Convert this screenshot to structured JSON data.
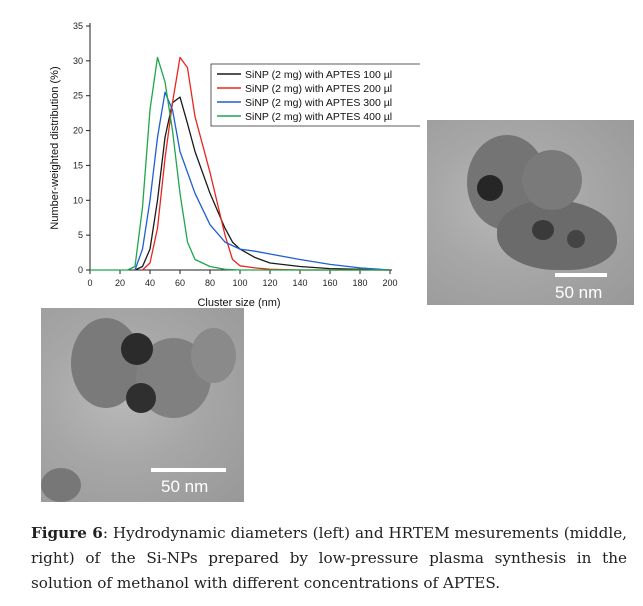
{
  "chart_data": {
    "type": "line",
    "xlabel": "Cluster size (nm)",
    "ylabel": "Number-weighted distribution (%)",
    "xlim": [
      0,
      200
    ],
    "ylim": [
      0,
      35
    ],
    "xticks": [
      0,
      20,
      40,
      60,
      80,
      100,
      120,
      140,
      160,
      180,
      200
    ],
    "yticks": [
      0,
      5,
      10,
      15,
      20,
      25,
      30,
      35
    ],
    "grid": false,
    "legend_position": "top-right",
    "series": [
      {
        "name": "SiNP (2 mg) with APTES 100 µl",
        "color": "#1a1a1a",
        "x": [
          30,
          35,
          40,
          45,
          50,
          55,
          60,
          65,
          70,
          80,
          90,
          95,
          100,
          110,
          120,
          140,
          160,
          180,
          200
        ],
        "y": [
          0,
          0.5,
          3,
          10,
          19,
          24,
          24.8,
          21,
          17,
          11,
          6,
          4,
          3,
          1.8,
          1,
          0.5,
          0.2,
          0.1,
          0
        ]
      },
      {
        "name": "SiNP (2 mg) with APTES 200 µl",
        "color": "#e8261f",
        "x": [
          35,
          40,
          45,
          50,
          55,
          60,
          65,
          70,
          80,
          90,
          95,
          100,
          110,
          120,
          140,
          160,
          180,
          200
        ],
        "y": [
          0,
          1,
          6,
          16,
          24,
          30.5,
          29,
          22,
          14,
          5,
          1.5,
          0.6,
          0.3,
          0.1,
          0,
          0,
          0,
          0
        ]
      },
      {
        "name": "SiNP (2 mg) with APTES 300 µl",
        "color": "#1f5fd1",
        "x": [
          30,
          35,
          40,
          45,
          50,
          55,
          60,
          65,
          70,
          80,
          90,
          95,
          100,
          110,
          120,
          140,
          160,
          180,
          200
        ],
        "y": [
          0,
          3,
          10,
          19,
          25.5,
          23,
          17,
          14,
          11,
          6.5,
          4,
          3.5,
          3,
          2.7,
          2.3,
          1.5,
          0.8,
          0.3,
          0
        ]
      },
      {
        "name": "SiNP (2 mg) with APTES 400 µl",
        "color": "#1fa64a",
        "x": [
          0,
          25,
          30,
          35,
          40,
          45,
          50,
          55,
          60,
          65,
          70,
          80,
          90,
          100,
          110,
          120,
          140,
          160,
          180,
          200
        ],
        "y": [
          0,
          0,
          0.5,
          9,
          23,
          30.5,
          27,
          20,
          11,
          4,
          1.5,
          0.5,
          0.1,
          0,
          0,
          0,
          0,
          0,
          0,
          0
        ]
      }
    ]
  },
  "images": [
    {
      "scale_label": "50 nm"
    },
    {
      "scale_label": "50 nm"
    }
  ],
  "caption": {
    "label": "Figure 6",
    "text": ": Hydrodynamic diameters (left) and HRTEM mesurements (middle, right) of the Si-NPs prepared by low-pressure plasma synthesis in the solution of methanol with different concentrations of APTES."
  }
}
